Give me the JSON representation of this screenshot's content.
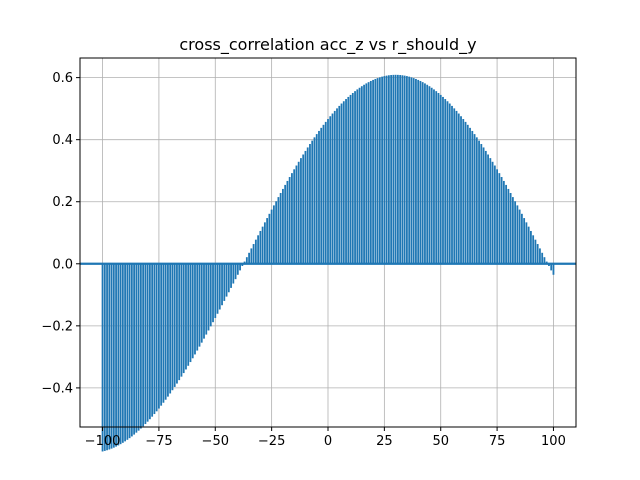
{
  "chart_data": {
    "type": "bar",
    "title": "cross_correlation acc_z vs r_should_y",
    "xlabel": "",
    "ylabel": "",
    "xlim": [
      -110,
      110
    ],
    "ylim": [
      -0.526,
      0.6632
    ],
    "grid": true,
    "legend": "none",
    "color": "#1f77b4",
    "baseline": 0.0,
    "x_range": [
      -100,
      100
    ],
    "x_step": 1,
    "model": "sinusoid",
    "model_params": {
      "amplitude": 0.609,
      "period": 270,
      "phase_x": -37.5
    },
    "anchor_values": [
      {
        "x": -100,
        "y": -0.47
      },
      {
        "x": -75,
        "y": -0.38
      },
      {
        "x": -50,
        "y": -0.16
      },
      {
        "x": -37,
        "y": 0.0
      },
      {
        "x": -25,
        "y": 0.22
      },
      {
        "x": 0,
        "y": 0.46
      },
      {
        "x": 25,
        "y": 0.6
      },
      {
        "x": 33,
        "y": 0.61
      },
      {
        "x": 50,
        "y": 0.55
      },
      {
        "x": 75,
        "y": 0.33
      },
      {
        "x": 100,
        "y": 0.09
      }
    ],
    "xticks": [
      {
        "value": -100,
        "label": "−100"
      },
      {
        "value": -75,
        "label": "−75"
      },
      {
        "value": -50,
        "label": "−50"
      },
      {
        "value": -25,
        "label": "−25"
      },
      {
        "value": 0,
        "label": "0"
      },
      {
        "value": 25,
        "label": "25"
      },
      {
        "value": 50,
        "label": "50"
      },
      {
        "value": 75,
        "label": "75"
      },
      {
        "value": 100,
        "label": "100"
      }
    ],
    "yticks": [
      {
        "value": -0.4,
        "label": "−0.4"
      },
      {
        "value": -0.2,
        "label": "−0.2"
      },
      {
        "value": 0.0,
        "label": "0.0"
      },
      {
        "value": 0.2,
        "label": "0.2"
      },
      {
        "value": 0.4,
        "label": "0.4"
      },
      {
        "value": 0.6,
        "label": "0.6"
      }
    ]
  }
}
